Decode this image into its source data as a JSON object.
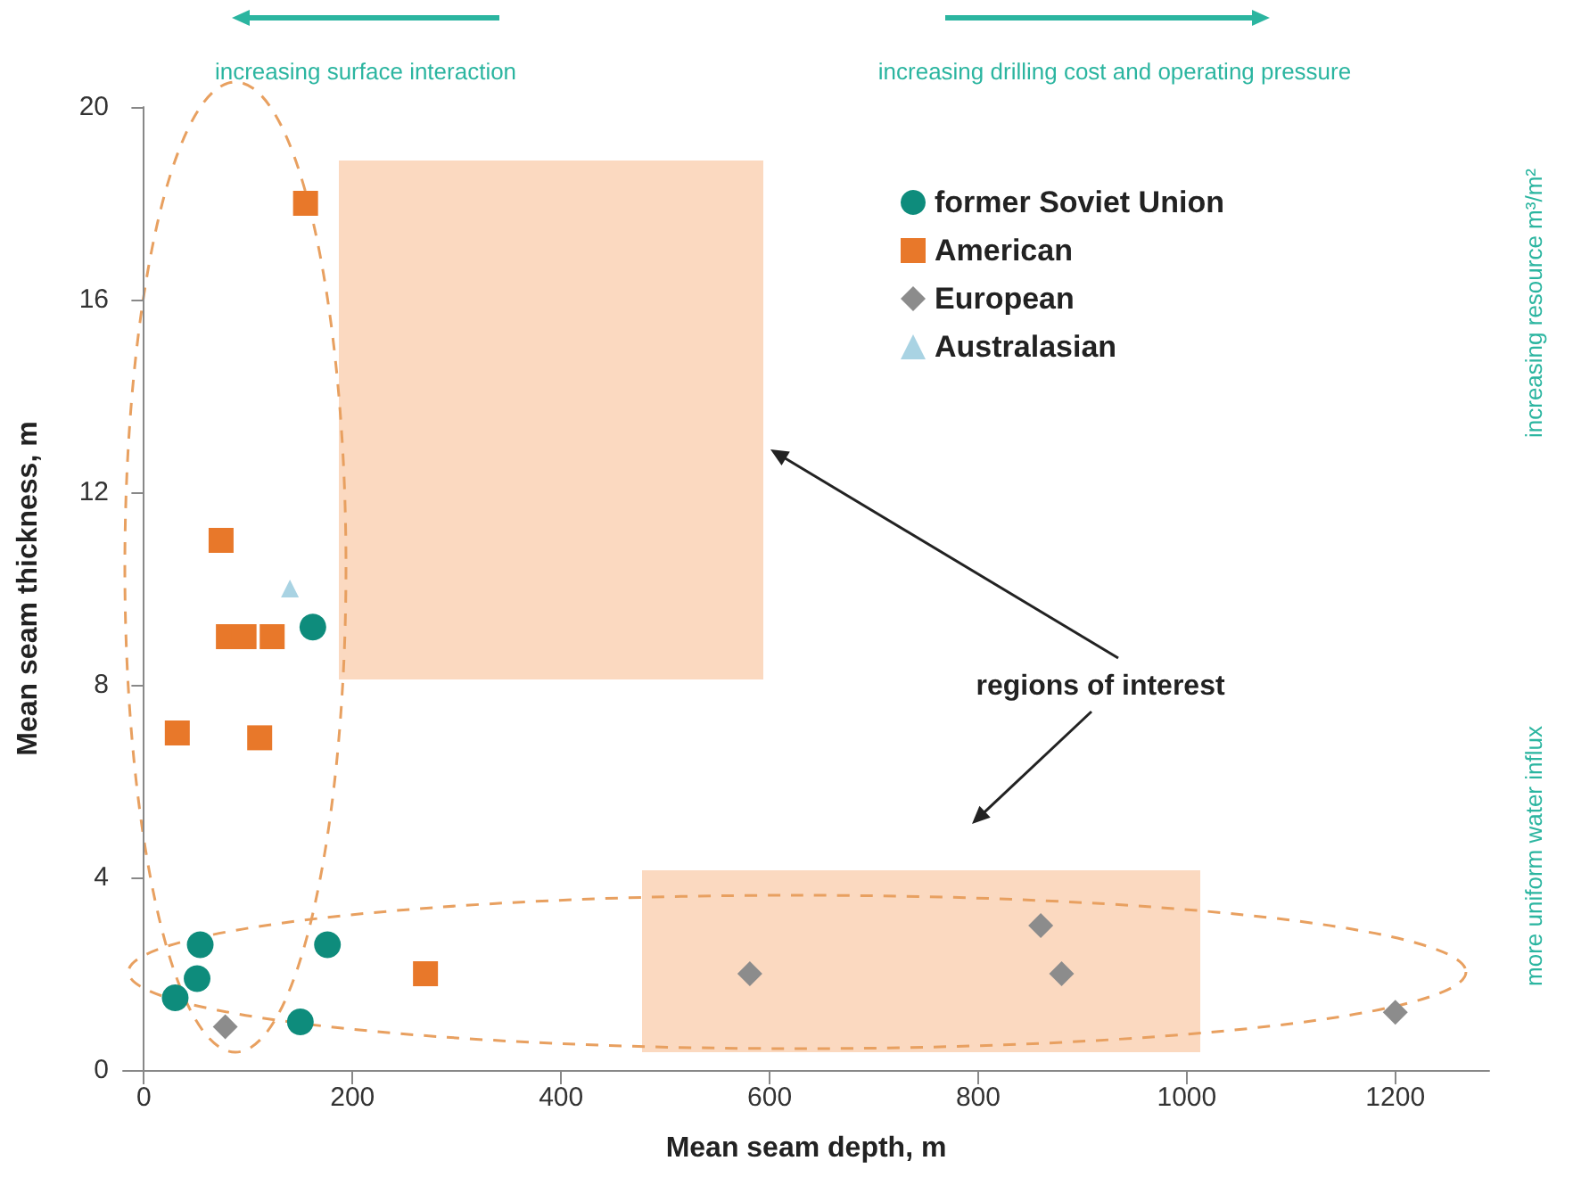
{
  "chart_data": {
    "type": "scatter",
    "xlabel": "Mean seam depth, m",
    "ylabel": "Mean seam thickness, m",
    "xlim": [
      -20,
      1290
    ],
    "xticks": [
      0,
      200,
      400,
      600,
      800,
      1000,
      1200
    ],
    "ylim": [
      0,
      20
    ],
    "yticks": [
      0,
      4,
      8,
      12,
      16,
      20
    ],
    "grid": false,
    "legend": "top right",
    "series": [
      {
        "name": "former Soviet Union",
        "color": "#0e8c7c",
        "marker": "circle",
        "x": [
          162,
          54,
          176,
          51,
          30,
          150
        ],
        "values": [
          9.2,
          2.6,
          2.6,
          1.9,
          1.5,
          1.0
        ]
      },
      {
        "name": "American",
        "color": "#e8782a",
        "marker": "square",
        "x": [
          155,
          74,
          81,
          96,
          123,
          32,
          111,
          270
        ],
        "values": [
          18,
          11,
          9,
          9,
          9,
          7,
          6.9,
          2
        ]
      },
      {
        "name": "European",
        "color": "#8c8c8c",
        "marker": "diamond",
        "x": [
          78,
          581,
          860,
          880,
          1200
        ],
        "values": [
          0.9,
          2,
          3,
          2,
          1.2
        ]
      },
      {
        "name": "Australasian",
        "color": "#a9d3e3",
        "marker": "triangle",
        "x": [
          140
        ],
        "values": [
          10
        ]
      }
    ],
    "annotations": [
      "increasing surface interaction",
      "increasing drilling cost and operating pressure",
      "increasing resource m³/m²",
      "more uniform water influx",
      "regions of interest"
    ]
  }
}
